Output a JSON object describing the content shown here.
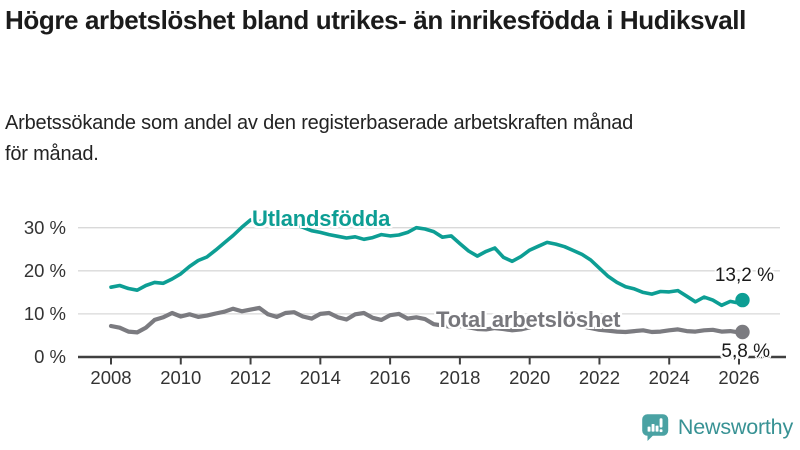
{
  "header": {
    "title": "Högre arbetslöshet bland utrikes- än inrikesfödda i Hudiksvall",
    "subtitle_line1": "Arbetssökande som andel av den registerbaserade arbetskraften månad",
    "subtitle_line2": "för månad."
  },
  "chart_data": {
    "type": "line",
    "title": "Högre arbetslöshet bland utrikes- än inrikesfödda i Hudiksvall",
    "subtitle": "Arbetssökande som andel av den registerbaserade arbetskraften månad för månad.",
    "xlabel": "",
    "ylabel": "",
    "ylim": [
      0,
      33
    ],
    "grid": "horizontal",
    "legend_position": "inline-labels",
    "x_ticks": [
      2008,
      2010,
      2012,
      2014,
      2016,
      2018,
      2020,
      2022,
      2024,
      2026
    ],
    "y_ticks": [
      {
        "label": "0 %",
        "value": 0
      },
      {
        "label": "10 %",
        "value": 10
      },
      {
        "label": "20 %",
        "value": 20
      },
      {
        "label": "30 %",
        "value": 30
      }
    ],
    "x": [
      2008,
      2008.25,
      2008.5,
      2008.75,
      2009,
      2009.25,
      2009.5,
      2009.75,
      2010,
      2010.25,
      2010.5,
      2010.75,
      2011,
      2011.25,
      2011.5,
      2011.75,
      2012,
      2012.25,
      2012.5,
      2012.75,
      2013,
      2013.25,
      2013.5,
      2013.75,
      2014,
      2014.25,
      2014.5,
      2014.75,
      2015,
      2015.25,
      2015.5,
      2015.75,
      2016,
      2016.25,
      2016.5,
      2016.75,
      2017,
      2017.25,
      2017.5,
      2017.75,
      2018,
      2018.25,
      2018.5,
      2018.75,
      2019,
      2019.25,
      2019.5,
      2019.75,
      2020,
      2020.25,
      2020.5,
      2020.75,
      2021,
      2021.25,
      2021.5,
      2021.75,
      2022,
      2022.25,
      2022.5,
      2022.75,
      2023,
      2023.25,
      2023.5,
      2023.75,
      2024,
      2024.25,
      2024.5,
      2024.75,
      2025,
      2025.25,
      2025.5,
      2025.75,
      2026,
      2026.1
    ],
    "series": [
      {
        "name": "Utlandsfödda",
        "color": "#0d9e94",
        "end_label": "13,2 %",
        "end_value": 13.2,
        "values": [
          16.2,
          16.6,
          15.9,
          15.5,
          16.6,
          17.3,
          17.1,
          18.1,
          19.3,
          21.0,
          22.4,
          23.2,
          24.8,
          26.5,
          28.2,
          30.1,
          31.8,
          31.4,
          31.8,
          31.2,
          31.4,
          30.8,
          30.1,
          29.3,
          28.9,
          28.4,
          28.0,
          27.6,
          27.9,
          27.3,
          27.7,
          28.4,
          28.1,
          28.3,
          28.9,
          30.0,
          29.7,
          29.1,
          27.8,
          28.1,
          26.3,
          24.6,
          23.4,
          24.5,
          25.3,
          23.1,
          22.2,
          23.3,
          24.8,
          25.7,
          26.6,
          26.2,
          25.6,
          24.7,
          23.8,
          22.5,
          20.6,
          18.7,
          17.3,
          16.3,
          15.8,
          15.0,
          14.6,
          15.2,
          15.1,
          15.4,
          14.1,
          12.8,
          13.9,
          13.2,
          12.0,
          12.9,
          12.5,
          13.2
        ]
      },
      {
        "name": "Total arbetslöshet",
        "color": "#7b7b80",
        "end_label": "5,8 %",
        "end_value": 5.8,
        "values": [
          7.2,
          6.8,
          5.9,
          5.7,
          6.8,
          8.6,
          9.2,
          10.2,
          9.4,
          9.9,
          9.3,
          9.6,
          10.1,
          10.5,
          11.2,
          10.6,
          11.0,
          11.4,
          9.9,
          9.3,
          10.2,
          10.4,
          9.4,
          8.9,
          10.0,
          10.2,
          9.2,
          8.7,
          9.9,
          10.2,
          9.1,
          8.6,
          9.7,
          10.0,
          8.9,
          9.2,
          8.8,
          7.6,
          7.3,
          7.0,
          7.2,
          6.9,
          6.5,
          6.4,
          6.7,
          6.5,
          6.2,
          6.4,
          6.9,
          8.1,
          8.7,
          8.4,
          8.1,
          7.7,
          7.1,
          6.7,
          6.3,
          6.1,
          5.9,
          5.8,
          6.0,
          6.2,
          5.8,
          5.9,
          6.2,
          6.4,
          6.0,
          5.9,
          6.2,
          6.3,
          5.9,
          6.0,
          5.7,
          5.8
        ]
      }
    ]
  },
  "branding": {
    "logo_text": "Newsworthy",
    "logo_color": "#4aa2a3",
    "logo_text_color": "#389294"
  },
  "style": {
    "axis_color": "#404040",
    "grid_color": "#d9d9d9",
    "tick_label_color": "#333333"
  }
}
